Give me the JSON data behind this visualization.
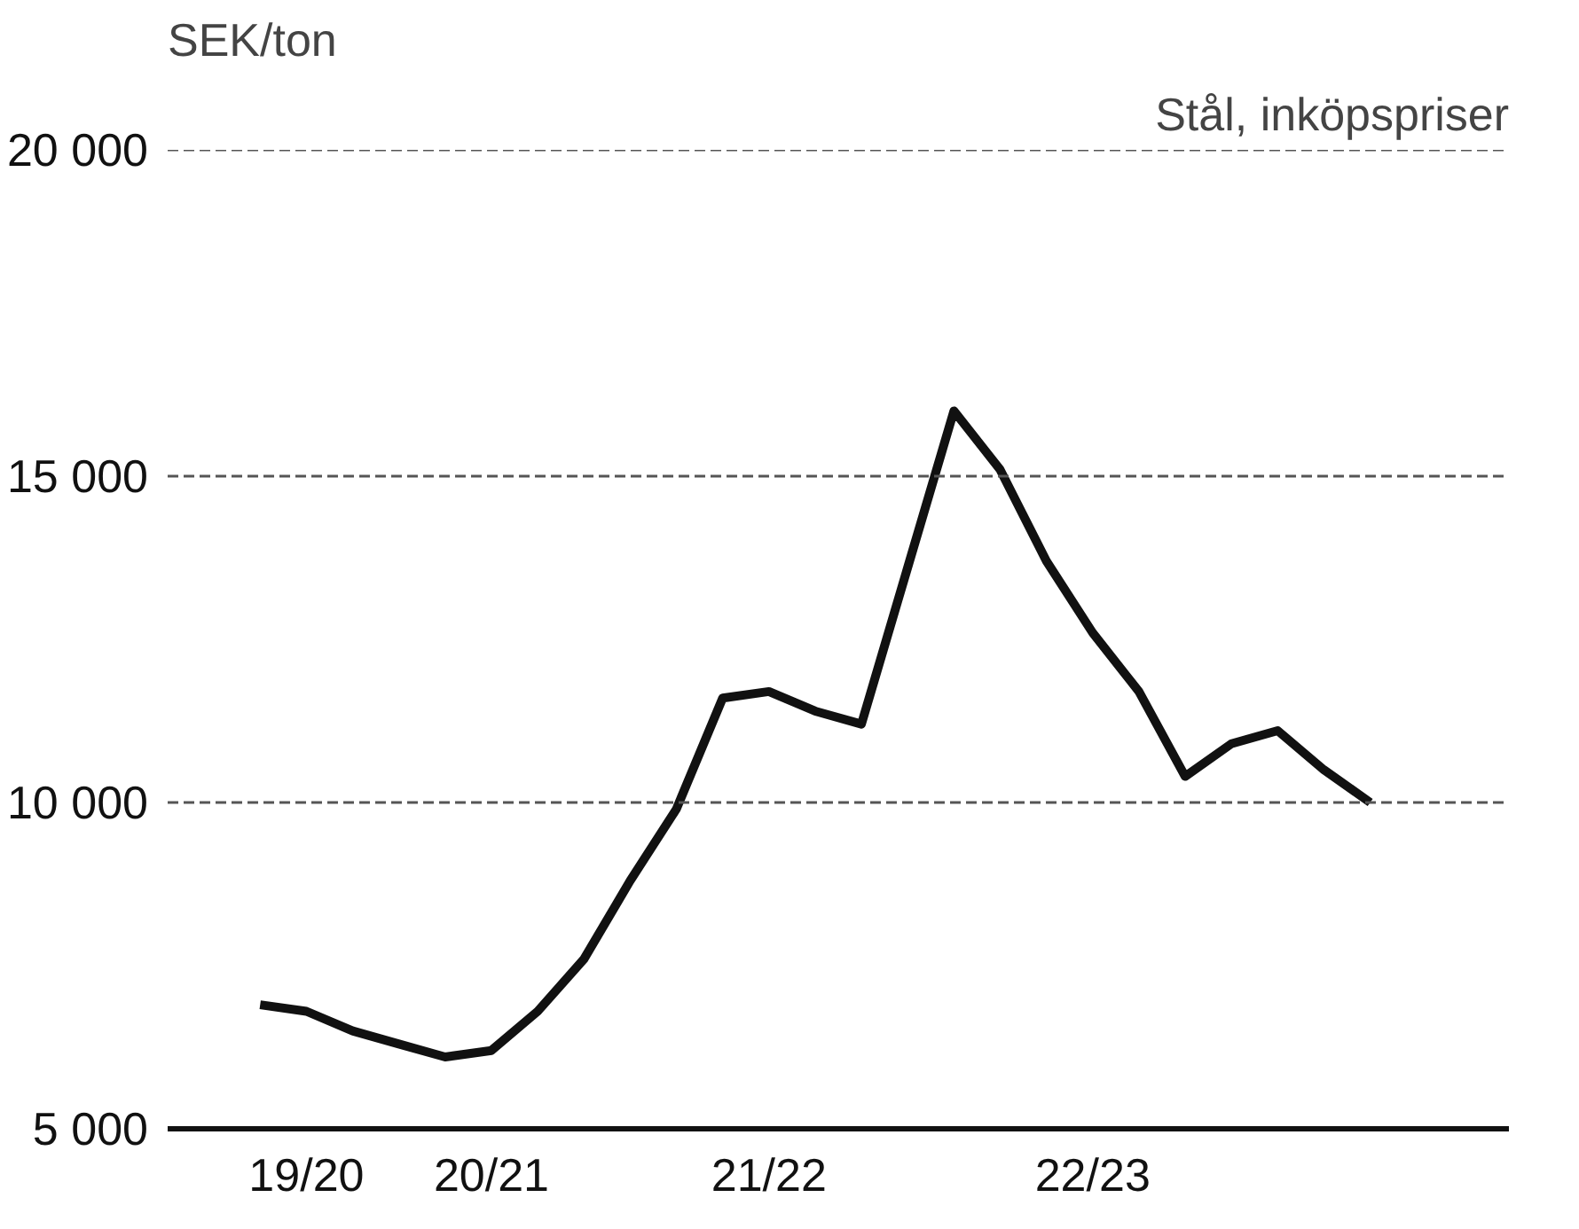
{
  "chart_data": {
    "type": "line",
    "title": "Stål, inköpspriser",
    "ylabel": "SEK/ton",
    "categories": [
      null,
      "19/20",
      null,
      null,
      null,
      "20/21",
      null,
      null,
      null,
      null,
      null,
      "21/22",
      null,
      null,
      null,
      null,
      null,
      null,
      "22/23",
      null,
      null,
      null,
      null,
      null,
      null
    ],
    "series": [
      {
        "color": "#111111",
        "values": [
          6900,
          6800,
          6500,
          6300,
          6100,
          6200,
          6800,
          7600,
          8800,
          9900,
          11600,
          11700,
          11400,
          11200,
          13600,
          16000,
          15100,
          13700,
          12600,
          11700,
          10400,
          10900,
          11100,
          10500,
          10000
        ]
      }
    ],
    "ylim": [
      5000,
      20000
    ],
    "yticks": [
      {
        "value": 5000,
        "label": "5 000"
      },
      {
        "value": 10000,
        "label": "10 000"
      },
      {
        "value": 15000,
        "label": "15 000"
      },
      {
        "value": 20000,
        "label": "20 000"
      }
    ],
    "grid": "y",
    "line_style": "solid",
    "marker": "none"
  }
}
